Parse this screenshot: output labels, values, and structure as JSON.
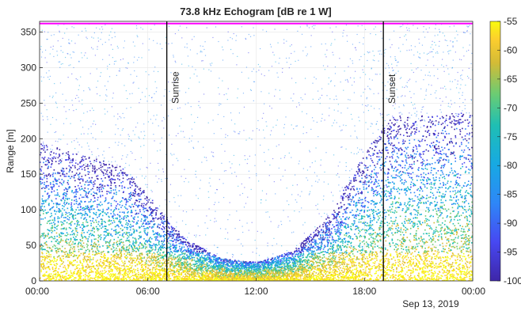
{
  "chart_data": {
    "type": "heatmap",
    "title": "73.8 kHz Echogram [dB re 1 W]",
    "ylabel": "Range [m]",
    "xlabel": "",
    "x_tick_labels": [
      "00:00",
      "06:00",
      "12:00",
      "18:00",
      "00:00"
    ],
    "x_ticks_hours": [
      0,
      6,
      12,
      18,
      24
    ],
    "xlim_hours": [
      0,
      24
    ],
    "date_label": "Sep 13, 2019",
    "y_ticks": [
      0,
      50,
      100,
      150,
      200,
      250,
      300,
      350
    ],
    "ylim": [
      0,
      365
    ],
    "colorbar": {
      "ticks": [
        -55,
        -60,
        -65,
        -70,
        -75,
        -80,
        -85,
        -90,
        -95,
        -100
      ],
      "range": [
        -100,
        -55
      ],
      "colormap": "parula"
    },
    "annotations": [
      {
        "label": "Sunrise",
        "x_hours": 7.05
      },
      {
        "label": "Sunset",
        "x_hours": 19.05
      }
    ],
    "surface_line_range_m": 362,
    "grid": true,
    "layer_description": [
      {
        "hours": 0,
        "layer_top_m": 180
      },
      {
        "hours": 4.5,
        "layer_top_m": 150
      },
      {
        "hours": 6,
        "layer_top_m": 110
      },
      {
        "hours": 8,
        "layer_top_m": 55
      },
      {
        "hours": 10,
        "layer_top_m": 30
      },
      {
        "hours": 12,
        "layer_top_m": 25
      },
      {
        "hours": 14,
        "layer_top_m": 40
      },
      {
        "hours": 16,
        "layer_top_m": 85
      },
      {
        "hours": 18,
        "layer_top_m": 170
      },
      {
        "hours": 19.5,
        "layer_top_m": 215
      },
      {
        "hours": 24,
        "layer_top_m": 220
      }
    ]
  },
  "colors": {
    "surface_line": "#ff00ff",
    "annotation_line": "#000000"
  }
}
